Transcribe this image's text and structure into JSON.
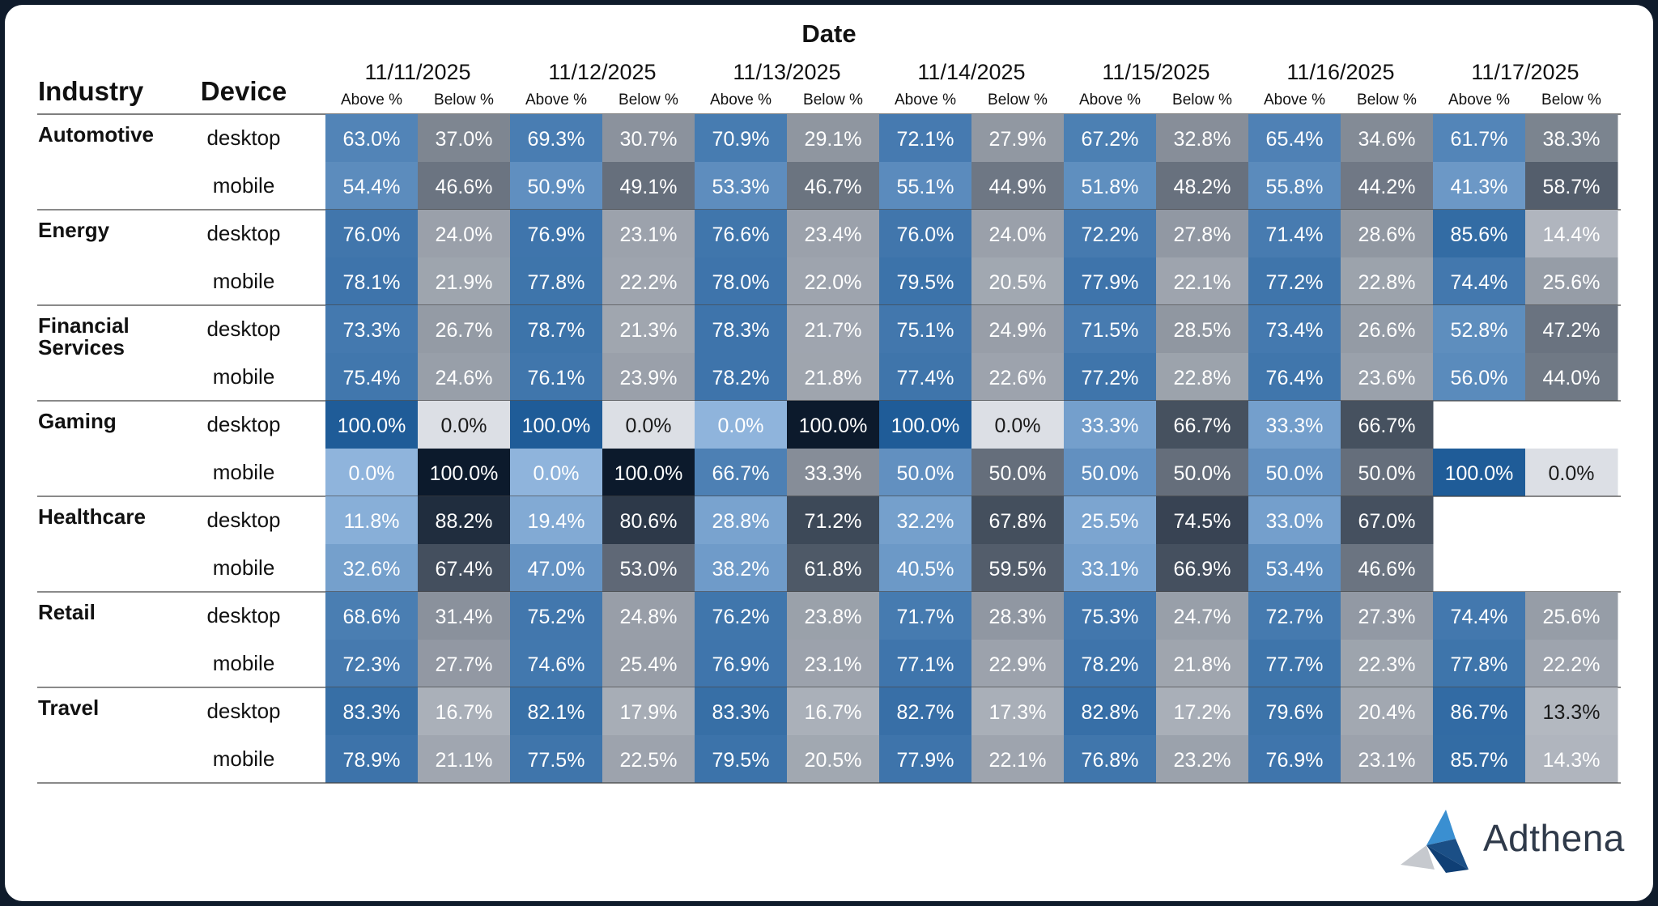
{
  "chart_data": {
    "type": "heatmap",
    "title": "Date",
    "row_headers": [
      "Industry",
      "Device"
    ],
    "dates": [
      "11/11/2025",
      "11/12/2025",
      "11/13/2025",
      "11/14/2025",
      "11/15/2025",
      "11/16/2025",
      "11/17/2025"
    ],
    "measures": [
      "Above %",
      "Below %"
    ],
    "rows": [
      {
        "industry": "Automotive",
        "industry_lines": [
          "Automotive"
        ],
        "devices": [
          {
            "device": "desktop",
            "values": [
              [
                63.0,
                37.0
              ],
              [
                69.3,
                30.7
              ],
              [
                70.9,
                29.1
              ],
              [
                72.1,
                27.9
              ],
              [
                67.2,
                32.8
              ],
              [
                65.4,
                34.6
              ],
              [
                61.7,
                38.3
              ]
            ]
          },
          {
            "device": "mobile",
            "values": [
              [
                54.4,
                46.6
              ],
              [
                50.9,
                49.1
              ],
              [
                53.3,
                46.7
              ],
              [
                55.1,
                44.9
              ],
              [
                51.8,
                48.2
              ],
              [
                55.8,
                44.2
              ],
              [
                41.3,
                58.7
              ]
            ]
          }
        ]
      },
      {
        "industry": "Energy",
        "industry_lines": [
          "Energy"
        ],
        "devices": [
          {
            "device": "desktop",
            "values": [
              [
                76.0,
                24.0
              ],
              [
                76.9,
                23.1
              ],
              [
                76.6,
                23.4
              ],
              [
                76.0,
                24.0
              ],
              [
                72.2,
                27.8
              ],
              [
                71.4,
                28.6
              ],
              [
                85.6,
                14.4
              ]
            ]
          },
          {
            "device": "mobile",
            "values": [
              [
                78.1,
                21.9
              ],
              [
                77.8,
                22.2
              ],
              [
                78.0,
                22.0
              ],
              [
                79.5,
                20.5
              ],
              [
                77.9,
                22.1
              ],
              [
                77.2,
                22.8
              ],
              [
                74.4,
                25.6
              ]
            ]
          }
        ]
      },
      {
        "industry": "Financial Services",
        "industry_lines": [
          "Financial",
          "Services"
        ],
        "devices": [
          {
            "device": "desktop",
            "values": [
              [
                73.3,
                26.7
              ],
              [
                78.7,
                21.3
              ],
              [
                78.3,
                21.7
              ],
              [
                75.1,
                24.9
              ],
              [
                71.5,
                28.5
              ],
              [
                73.4,
                26.6
              ],
              [
                52.8,
                47.2
              ]
            ]
          },
          {
            "device": "mobile",
            "values": [
              [
                75.4,
                24.6
              ],
              [
                76.1,
                23.9
              ],
              [
                78.2,
                21.8
              ],
              [
                77.4,
                22.6
              ],
              [
                77.2,
                22.8
              ],
              [
                76.4,
                23.6
              ],
              [
                56.0,
                44.0
              ]
            ]
          }
        ]
      },
      {
        "industry": "Gaming",
        "industry_lines": [
          "Gaming"
        ],
        "devices": [
          {
            "device": "desktop",
            "values": [
              [
                100.0,
                0.0
              ],
              [
                100.0,
                0.0
              ],
              [
                0.0,
                100.0
              ],
              [
                100.0,
                0.0
              ],
              [
                33.3,
                66.7
              ],
              [
                33.3,
                66.7
              ],
              null
            ]
          },
          {
            "device": "mobile",
            "values": [
              [
                0.0,
                100.0
              ],
              [
                0.0,
                100.0
              ],
              [
                66.7,
                33.3
              ],
              [
                50.0,
                50.0
              ],
              [
                50.0,
                50.0
              ],
              [
                50.0,
                50.0
              ],
              [
                100.0,
                0.0
              ]
            ]
          }
        ]
      },
      {
        "industry": "Healthcare",
        "industry_lines": [
          "Healthcare"
        ],
        "devices": [
          {
            "device": "desktop",
            "values": [
              [
                11.8,
                88.2
              ],
              [
                19.4,
                80.6
              ],
              [
                28.8,
                71.2
              ],
              [
                32.2,
                67.8
              ],
              [
                25.5,
                74.5
              ],
              [
                33.0,
                67.0
              ],
              null
            ]
          },
          {
            "device": "mobile",
            "values": [
              [
                32.6,
                67.4
              ],
              [
                47.0,
                53.0
              ],
              [
                38.2,
                61.8
              ],
              [
                40.5,
                59.5
              ],
              [
                33.1,
                66.9
              ],
              [
                53.4,
                46.6
              ],
              null
            ]
          }
        ]
      },
      {
        "industry": "Retail",
        "industry_lines": [
          "Retail"
        ],
        "devices": [
          {
            "device": "desktop",
            "values": [
              [
                68.6,
                31.4
              ],
              [
                75.2,
                24.8
              ],
              [
                76.2,
                23.8
              ],
              [
                71.7,
                28.3
              ],
              [
                75.3,
                24.7
              ],
              [
                72.7,
                27.3
              ],
              [
                74.4,
                25.6
              ]
            ]
          },
          {
            "device": "mobile",
            "values": [
              [
                72.3,
                27.7
              ],
              [
                74.6,
                25.4
              ],
              [
                76.9,
                23.1
              ],
              [
                77.1,
                22.9
              ],
              [
                78.2,
                21.8
              ],
              [
                77.7,
                22.3
              ],
              [
                77.8,
                22.2
              ]
            ]
          }
        ]
      },
      {
        "industry": "Travel",
        "industry_lines": [
          "Travel"
        ],
        "devices": [
          {
            "device": "desktop",
            "values": [
              [
                83.3,
                16.7
              ],
              [
                82.1,
                17.9
              ],
              [
                83.3,
                16.7
              ],
              [
                82.7,
                17.3
              ],
              [
                82.8,
                17.2
              ],
              [
                79.6,
                20.4
              ],
              [
                86.7,
                13.3
              ]
            ]
          },
          {
            "device": "mobile",
            "values": [
              [
                78.9,
                21.1
              ],
              [
                77.5,
                22.5
              ],
              [
                79.5,
                20.5
              ],
              [
                77.9,
                22.1
              ],
              [
                76.8,
                23.2
              ],
              [
                76.9,
                23.1
              ],
              [
                85.7,
                14.3
              ]
            ]
          }
        ]
      }
    ],
    "colors": {
      "above_low": "#8fb4dc",
      "above_high": "#1f5c98",
      "below_low": "#dcdfe5",
      "below_high": "#0c1a2c",
      "frame": "#0f1b2b"
    }
  },
  "brand": {
    "name": "Adthena"
  }
}
